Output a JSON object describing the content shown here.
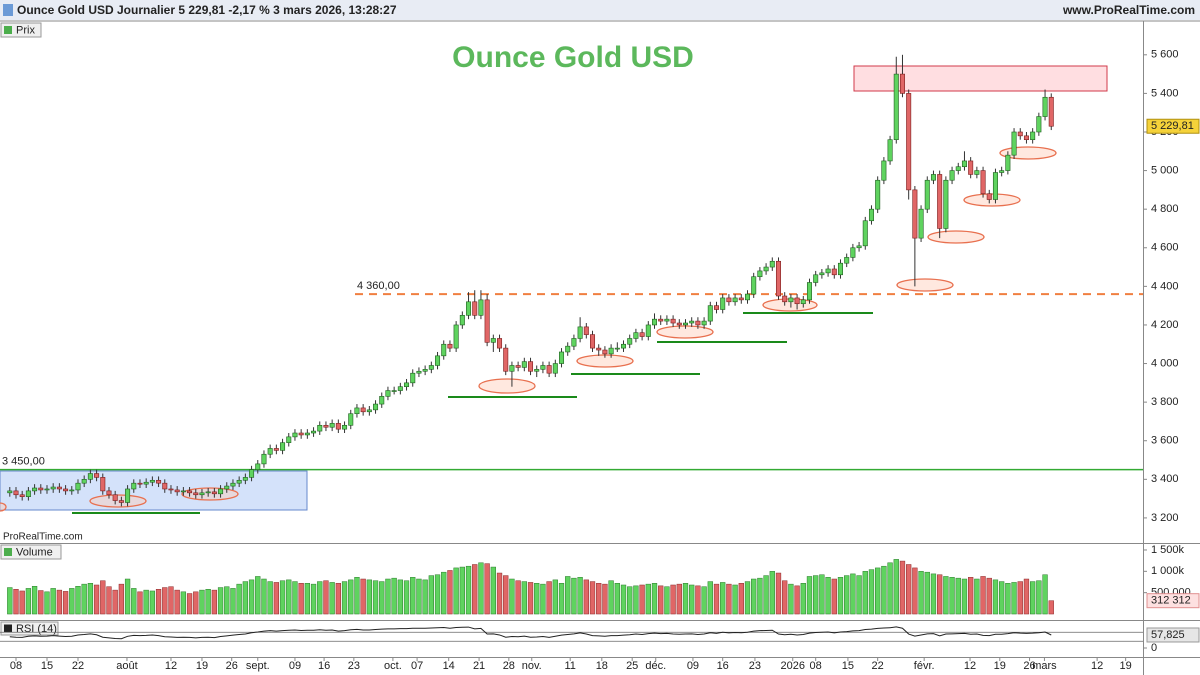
{
  "header": {
    "text": "Ounce Gold USD Journalier 5 229,81 -2,17 % 3 mars 2026, 13:28:27",
    "site": "www.ProRealTime.com"
  },
  "watermark": "ProRealTime.com",
  "chart_data": [
    {
      "type": "candlestick",
      "name": "Prix",
      "title": "Ounce Gold USD",
      "xlim": [
        -1.58,
        182.8
      ],
      "ylim": [
        3070,
        5770
      ],
      "yticks": [
        {
          "value": 3200,
          "label": "3 200"
        },
        {
          "value": 3400,
          "label": "3 400"
        },
        {
          "value": 3600,
          "label": "3 600"
        },
        {
          "value": 3800,
          "label": "3 800"
        },
        {
          "value": 4000,
          "label": "4 000"
        },
        {
          "value": 4200,
          "label": "4 200"
        },
        {
          "value": 4400,
          "label": "4 400"
        },
        {
          "value": 4600,
          "label": "4 600"
        },
        {
          "value": 4800,
          "label": "4 800"
        },
        {
          "value": 5000,
          "label": "5 000"
        },
        {
          "value": 5200,
          "label": "5 200"
        },
        {
          "value": 5400,
          "label": "5 400"
        },
        {
          "value": 5600,
          "label": "5 600"
        }
      ],
      "up_color": "#5fd35f",
      "down_color": "#e06666",
      "levels": [
        {
          "value": 4360,
          "label": "4 360,00",
          "color": "#f07f40",
          "dashed": true
        },
        {
          "value": 3450,
          "label": "3 450,00",
          "color": "#33aa33",
          "dashed": false
        }
      ],
      "last_label": {
        "value": 5229.81,
        "label": "5 229,81"
      },
      "open": [
        3330,
        3340,
        3320,
        3310,
        3340,
        3355,
        3345,
        3350,
        3360,
        3350,
        3340,
        3345,
        3380,
        3400,
        3430,
        3410,
        3340,
        3320,
        3290,
        3280,
        3350,
        3380,
        3375,
        3385,
        3395,
        3380,
        3350,
        3345,
        3335,
        3340,
        3330,
        3320,
        3330,
        3335,
        3325,
        3350,
        3365,
        3380,
        3395,
        3410,
        3450,
        3480,
        3530,
        3560,
        3550,
        3590,
        3620,
        3640,
        3630,
        3640,
        3650,
        3680,
        3670,
        3690,
        3660,
        3680,
        3740,
        3770,
        3750,
        3760,
        3790,
        3830,
        3860,
        3860,
        3880,
        3900,
        3950,
        3960,
        3970,
        3990,
        4040,
        4100,
        4080,
        4200,
        4250,
        4320,
        4250,
        4330,
        4110,
        4130,
        4080,
        3960,
        3990,
        3980,
        4010,
        3960,
        3970,
        3990,
        3950,
        4000,
        4060,
        4090,
        4130,
        4190,
        4150,
        4080,
        4070,
        4050,
        4080,
        4080,
        4100,
        4130,
        4160,
        4140,
        4200,
        4230,
        4220,
        4230,
        4210,
        4200,
        4210,
        4220,
        4200,
        4220,
        4300,
        4280,
        4340,
        4320,
        4340,
        4330,
        4360,
        4450,
        4480,
        4500,
        4530,
        4350,
        4320,
        4340,
        4310,
        4330,
        4420,
        4460,
        4470,
        4490,
        4460,
        4520,
        4550,
        4600,
        4610,
        4740,
        4800,
        4950,
        5050,
        5160,
        5500,
        5400,
        4900,
        4650,
        4800,
        4950,
        4980,
        4700,
        4950,
        5000,
        5020,
        5050,
        4980,
        5000,
        4880,
        4850,
        4990,
        5000,
        5080,
        5200,
        5180,
        5160,
        5200,
        5280,
        5380
      ],
      "high": [
        3360,
        3360,
        3340,
        3360,
        3375,
        3375,
        3370,
        3380,
        3380,
        3370,
        3365,
        3400,
        3420,
        3450,
        3450,
        3430,
        3360,
        3340,
        3310,
        3370,
        3400,
        3400,
        3405,
        3415,
        3415,
        3400,
        3370,
        3365,
        3360,
        3360,
        3350,
        3350,
        3355,
        3355,
        3370,
        3385,
        3400,
        3415,
        3430,
        3470,
        3500,
        3550,
        3580,
        3580,
        3610,
        3640,
        3660,
        3660,
        3660,
        3670,
        3700,
        3700,
        3710,
        3710,
        3700,
        3760,
        3790,
        3790,
        3780,
        3810,
        3850,
        3880,
        3880,
        3900,
        3920,
        3970,
        3980,
        3990,
        4010,
        4060,
        4120,
        4120,
        4220,
        4270,
        4370,
        4380,
        4380,
        4360,
        4150,
        4150,
        4100,
        4010,
        4010,
        4030,
        4030,
        3990,
        4010,
        4010,
        4020,
        4080,
        4110,
        4150,
        4240,
        4210,
        4170,
        4100,
        4090,
        4100,
        4110,
        4120,
        4150,
        4180,
        4180,
        4220,
        4260,
        4250,
        4250,
        4250,
        4230,
        4230,
        4240,
        4240,
        4240,
        4320,
        4320,
        4360,
        4360,
        4360,
        4360,
        4380,
        4470,
        4500,
        4520,
        4550,
        4550,
        4370,
        4360,
        4360,
        4350,
        4440,
        4480,
        4490,
        4510,
        4510,
        4540,
        4570,
        4620,
        4630,
        4760,
        4820,
        4970,
        5070,
        5180,
        5590,
        5600,
        5420,
        4920,
        4820,
        4970,
        5000,
        5000,
        4970,
        5020,
        5040,
        5100,
        5070,
        5020,
        5020,
        4900,
        5010,
        5020,
        5100,
        5220,
        5220,
        5200,
        5220,
        5300,
        5420,
        5400
      ],
      "low": [
        3310,
        3300,
        3290,
        3290,
        3320,
        3325,
        3325,
        3330,
        3330,
        3320,
        3320,
        3325,
        3360,
        3380,
        3390,
        3320,
        3300,
        3270,
        3260,
        3260,
        3330,
        3355,
        3355,
        3365,
        3360,
        3330,
        3325,
        3315,
        3315,
        3310,
        3300,
        3300,
        3310,
        3305,
        3305,
        3330,
        3345,
        3360,
        3375,
        3390,
        3430,
        3460,
        3510,
        3530,
        3530,
        3570,
        3600,
        3610,
        3610,
        3620,
        3630,
        3650,
        3650,
        3640,
        3640,
        3660,
        3720,
        3730,
        3730,
        3740,
        3770,
        3810,
        3840,
        3840,
        3860,
        3880,
        3930,
        3940,
        3950,
        3970,
        4020,
        4060,
        4060,
        4180,
        4230,
        4230,
        4230,
        4090,
        4060,
        4060,
        3940,
        3880,
        3960,
        3960,
        3940,
        3930,
        3950,
        3930,
        3930,
        3980,
        4040,
        4070,
        4110,
        4130,
        4060,
        4040,
        4030,
        4030,
        4060,
        4060,
        4080,
        4110,
        4120,
        4120,
        4180,
        4200,
        4200,
        4190,
        4180,
        4180,
        4190,
        4180,
        4180,
        4200,
        4260,
        4260,
        4300,
        4300,
        4310,
        4310,
        4340,
        4430,
        4460,
        4480,
        4330,
        4300,
        4290,
        4280,
        4290,
        4310,
        4400,
        4440,
        4450,
        4440,
        4440,
        4500,
        4530,
        4580,
        4590,
        4720,
        4780,
        4930,
        5030,
        5140,
        5380,
        4850,
        4400,
        4630,
        4780,
        4930,
        4650,
        4680,
        4930,
        4980,
        5000,
        4960,
        4960,
        4860,
        4830,
        4830,
        4970,
        4980,
        5060,
        5160,
        5140,
        5140,
        5180,
        5260,
        5210
      ],
      "close": [
        3340,
        3320,
        3310,
        3340,
        3355,
        3345,
        3350,
        3360,
        3350,
        3340,
        3345,
        3380,
        3400,
        3430,
        3410,
        3340,
        3320,
        3290,
        3280,
        3350,
        3380,
        3375,
        3385,
        3395,
        3380,
        3350,
        3345,
        3335,
        3340,
        3330,
        3320,
        3330,
        3335,
        3325,
        3350,
        3365,
        3380,
        3395,
        3410,
        3450,
        3480,
        3530,
        3560,
        3550,
        3590,
        3620,
        3640,
        3630,
        3640,
        3650,
        3680,
        3670,
        3690,
        3660,
        3680,
        3740,
        3770,
        3750,
        3760,
        3790,
        3830,
        3860,
        3860,
        3880,
        3900,
        3950,
        3960,
        3970,
        3990,
        4040,
        4100,
        4080,
        4200,
        4250,
        4320,
        4250,
        4330,
        4110,
        4130,
        4080,
        3960,
        3990,
        3980,
        4010,
        3960,
        3970,
        3990,
        3950,
        4000,
        4060,
        4090,
        4130,
        4190,
        4150,
        4080,
        4070,
        4050,
        4080,
        4080,
        4100,
        4130,
        4160,
        4140,
        4200,
        4230,
        4220,
        4230,
        4210,
        4200,
        4210,
        4220,
        4200,
        4220,
        4300,
        4280,
        4340,
        4320,
        4340,
        4330,
        4360,
        4450,
        4480,
        4500,
        4530,
        4350,
        4320,
        4340,
        4310,
        4330,
        4420,
        4460,
        4470,
        4490,
        4460,
        4520,
        4550,
        4600,
        4610,
        4740,
        4800,
        4950,
        5050,
        5160,
        5500,
        5400,
        4900,
        4650,
        4800,
        4950,
        4980,
        4700,
        4950,
        5000,
        5020,
        5050,
        4980,
        5000,
        4880,
        4850,
        4990,
        5000,
        5080,
        5200,
        5180,
        5160,
        5200,
        5280,
        5380,
        5229.81
      ]
    },
    {
      "type": "bar",
      "name": "Volume",
      "xlim": [
        -1.58,
        182.8
      ],
      "ylim": [
        -140000,
        1640000
      ],
      "yticks": [
        {
          "value": 500000,
          "label": "500 000"
        },
        {
          "value": 1000000,
          "label": "1 000k"
        },
        {
          "value": 1500000,
          "label": "1 500k"
        }
      ],
      "last_label": {
        "value": 312312,
        "label": "312 312"
      },
      "values": [
        620000,
        580000,
        540000,
        600000,
        650000,
        550000,
        520000,
        600000,
        560000,
        530000,
        600000,
        650000,
        700000,
        720000,
        680000,
        780000,
        640000,
        560000,
        700000,
        820000,
        600000,
        520000,
        560000,
        540000,
        580000,
        620000,
        640000,
        560000,
        520000,
        480000,
        520000,
        560000,
        580000,
        560000,
        620000,
        640000,
        600000,
        700000,
        760000,
        800000,
        880000,
        820000,
        760000,
        740000,
        780000,
        800000,
        760000,
        720000,
        720000,
        700000,
        760000,
        780000,
        740000,
        720000,
        760000,
        800000,
        860000,
        820000,
        800000,
        780000,
        760000,
        820000,
        840000,
        800000,
        780000,
        860000,
        820000,
        800000,
        900000,
        920000,
        980000,
        1020000,
        1080000,
        1100000,
        1120000,
        1160000,
        1200000,
        1180000,
        1100000,
        960000,
        900000,
        820000,
        780000,
        760000,
        740000,
        720000,
        700000,
        760000,
        800000,
        720000,
        880000,
        840000,
        860000,
        800000,
        760000,
        720000,
        700000,
        780000,
        720000,
        680000,
        640000,
        660000,
        680000,
        700000,
        720000,
        660000,
        640000,
        680000,
        700000,
        720000,
        680000,
        660000,
        640000,
        760000,
        700000,
        740000,
        700000,
        680000,
        720000,
        760000,
        820000,
        840000,
        900000,
        1000000,
        960000,
        780000,
        700000,
        660000,
        720000,
        880000,
        900000,
        920000,
        860000,
        820000,
        860000,
        900000,
        940000,
        900000,
        1000000,
        1040000,
        1080000,
        1120000,
        1200000,
        1280000,
        1240000,
        1160000,
        1080000,
        1000000,
        980000,
        940000,
        920000,
        880000,
        860000,
        840000,
        820000,
        860000,
        820000,
        880000,
        840000,
        800000,
        760000,
        720000,
        740000,
        760000,
        820000,
        760000,
        780000,
        920000,
        312312
      ]
    },
    {
      "type": "line",
      "name": "RSI (14)",
      "color": "#222222",
      "xlim": [
        -1.58,
        182.8
      ],
      "ylim": [
        -40,
        120
      ],
      "yticks": [
        0
      ],
      "levels": [
        30,
        70
      ],
      "last_label": {
        "value": 57.825,
        "label": "57,825"
      },
      "xticks": [
        {
          "value": 1,
          "label": "08"
        },
        {
          "value": 6,
          "label": "15"
        },
        {
          "value": 11,
          "label": "22"
        },
        {
          "value": 18.9,
          "label": "août"
        },
        {
          "value": 26,
          "label": "12"
        },
        {
          "value": 31,
          "label": "19"
        },
        {
          "value": 35.8,
          "label": "26"
        },
        {
          "value": 40,
          "label": "sept."
        },
        {
          "value": 46,
          "label": "09"
        },
        {
          "value": 50.7,
          "label": "16"
        },
        {
          "value": 55.5,
          "label": "23"
        },
        {
          "value": 61.8,
          "label": "oct."
        },
        {
          "value": 65.7,
          "label": "07"
        },
        {
          "value": 70.8,
          "label": "14"
        },
        {
          "value": 75.7,
          "label": "21"
        },
        {
          "value": 80.5,
          "label": "28"
        },
        {
          "value": 84.2,
          "label": "nov."
        },
        {
          "value": 90.4,
          "label": "11"
        },
        {
          "value": 95.5,
          "label": "18"
        },
        {
          "value": 100.4,
          "label": "25"
        },
        {
          "value": 104.2,
          "label": "déc."
        },
        {
          "value": 110.2,
          "label": "09"
        },
        {
          "value": 115,
          "label": "16"
        },
        {
          "value": 120.2,
          "label": "23"
        },
        {
          "value": 126.3,
          "label": "2026"
        },
        {
          "value": 130,
          "label": "08"
        },
        {
          "value": 135.2,
          "label": "15"
        },
        {
          "value": 140,
          "label": "22"
        },
        {
          "value": 147.5,
          "label": "févr."
        },
        {
          "value": 154.9,
          "label": "12"
        },
        {
          "value": 159.7,
          "label": "19"
        },
        {
          "value": 164.5,
          "label": "26"
        },
        {
          "value": 166.9,
          "label": "mars"
        },
        {
          "value": 175.4,
          "label": "12"
        },
        {
          "value": 180,
          "label": "19"
        }
      ],
      "values": [
        50,
        48,
        47,
        52,
        54,
        52,
        53,
        55,
        53,
        51,
        52,
        58,
        60,
        63,
        59,
        48,
        45,
        42,
        41,
        52,
        56,
        55,
        56,
        58,
        55,
        50,
        49,
        47,
        48,
        47,
        45,
        47,
        48,
        46,
        51,
        54,
        57,
        60,
        62,
        68,
        71,
        75,
        77,
        75,
        77,
        79,
        80,
        78,
        79,
        79,
        81,
        79,
        80,
        75,
        77,
        81,
        83,
        80,
        80,
        82,
        84,
        85,
        85,
        86,
        86,
        88,
        88,
        88,
        89,
        90,
        91,
        88,
        91,
        92,
        93,
        85,
        87,
        62,
        63,
        58,
        48,
        51,
        50,
        53,
        48,
        49,
        51,
        47,
        52,
        57,
        60,
        63,
        67,
        62,
        55,
        54,
        52,
        55,
        55,
        57,
        59,
        62,
        60,
        64,
        66,
        64,
        65,
        62,
        61,
        62,
        63,
        60,
        62,
        68,
        65,
        70,
        67,
        69,
        68,
        70,
        75,
        77,
        78,
        79,
        62,
        59,
        61,
        58,
        60,
        66,
        69,
        70,
        71,
        67,
        71,
        73,
        76,
        77,
        82,
        84,
        87,
        89,
        90,
        94,
        88,
        62,
        53,
        58,
        63,
        64,
        54,
        62,
        63,
        64,
        65,
        61,
        62,
        56,
        55,
        61,
        61,
        64,
        68,
        66,
        65,
        66,
        68,
        71,
        57.825
      ]
    }
  ]
}
